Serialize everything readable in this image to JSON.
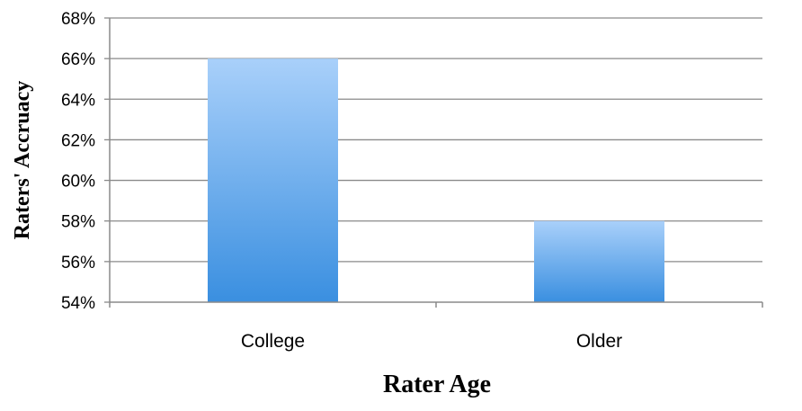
{
  "chart_data": {
    "type": "bar",
    "categories": [
      "College",
      "Older"
    ],
    "values": [
      66,
      58
    ],
    "xlabel": "Rater Age",
    "ylabel": "Raters' Accruacy",
    "ylim": [
      54,
      68
    ],
    "ytick_step": 2,
    "ytick_labels": [
      "54%",
      "56%",
      "58%",
      "60%",
      "62%",
      "64%",
      "66%",
      "68%"
    ],
    "grid": true,
    "legend": "none",
    "bar_color_top": "#a9d0fa",
    "bar_color_bottom": "#3a8fe0",
    "grid_color": "#8a8a8a"
  }
}
